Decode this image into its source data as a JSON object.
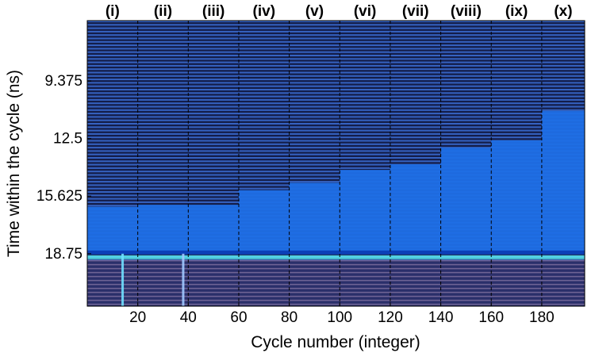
{
  "chart_data": {
    "type": "heatmap",
    "title": "",
    "xlabel": "Cycle number (integer)",
    "ylabel": "Time within the cycle (ns)",
    "xlim": [
      0,
      197
    ],
    "ylim": [
      6.1,
      21.6
    ],
    "y_inverted": true,
    "x_ticks": [
      20,
      40,
      60,
      80,
      100,
      120,
      140,
      160,
      180
    ],
    "x_tick_labels": [
      "20",
      "40",
      "60",
      "80",
      "100",
      "120",
      "140",
      "160",
      "180"
    ],
    "y_ticks": [
      9.375,
      12.5,
      15.625,
      18.75
    ],
    "y_tick_labels": [
      "9.375",
      "12.5",
      "15.625",
      "18.75"
    ],
    "segment_dividers": [
      20,
      40,
      60,
      80,
      100,
      120,
      140,
      160,
      180
    ],
    "segments": [
      {
        "label": "(i)",
        "x_start": 0,
        "x_end": 20,
        "fill_top_ns": 16.2
      },
      {
        "label": "(ii)",
        "x_start": 20,
        "x_end": 40,
        "fill_top_ns": 16.1
      },
      {
        "label": "(iii)",
        "x_start": 40,
        "x_end": 60,
        "fill_top_ns": 16.1
      },
      {
        "label": "(iv)",
        "x_start": 60,
        "x_end": 80,
        "fill_top_ns": 15.3
      },
      {
        "label": "(v)",
        "x_start": 80,
        "x_end": 100,
        "fill_top_ns": 14.9
      },
      {
        "label": "(vi)",
        "x_start": 100,
        "x_end": 120,
        "fill_top_ns": 14.2
      },
      {
        "label": "(vii)",
        "x_start": 120,
        "x_end": 140,
        "fill_top_ns": 13.9
      },
      {
        "label": "(viii)",
        "x_start": 140,
        "x_end": 160,
        "fill_top_ns": 13.0
      },
      {
        "label": "(ix)",
        "x_start": 160,
        "x_end": 180,
        "fill_top_ns": 12.6
      },
      {
        "label": "(x)",
        "x_start": 180,
        "x_end": 197,
        "fill_top_ns": 11.0
      }
    ],
    "bright_band_ns": 18.75,
    "grid": false,
    "colors": {
      "background_stripe_dark": "#141e4a",
      "background_stripe_light": "#3b6fd6",
      "fill_region": "#1f6fe6",
      "bright_band": "#58e6f0",
      "lower_stripe_light": "#a890b8",
      "lower_stripe_dark": "#2a2f6a"
    }
  }
}
